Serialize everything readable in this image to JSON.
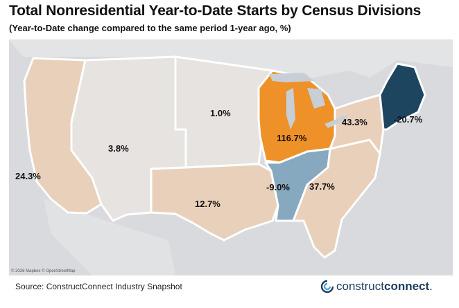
{
  "title": "Total Nonresidential Year-to-Date Starts by Census Divisions",
  "subtitle": "(Year-to-Date change compared to the same period 1-year ago, %)",
  "map": {
    "credit": "© 2026 Mapbox © OpenStreetMap",
    "legend": "none",
    "colors": {
      "background": "#d8dadd",
      "border_white": "#ffffff",
      "grey_division": "#e6e3e0",
      "tan_division": "#e8d0bb",
      "orange_division": "#ef9129",
      "blue_division": "#87a9c0",
      "navy_division": "#1e4560",
      "water": "#c7ced6"
    },
    "divisions": [
      {
        "name": "Pacific",
        "label": "24.3%",
        "value": 24.3,
        "color": "#e8d0bb"
      },
      {
        "name": "Mountain",
        "label": "3.8%",
        "value": 3.8,
        "color": "#e6e3e0"
      },
      {
        "name": "West North Central",
        "label": "1.0%",
        "value": 1.0,
        "color": "#e6e3e0"
      },
      {
        "name": "West South Central",
        "label": "12.7%",
        "value": 12.7,
        "color": "#e8d0bb"
      },
      {
        "name": "East North Central",
        "label": "116.7%",
        "value": 116.7,
        "color": "#ef9129"
      },
      {
        "name": "East South Central",
        "label": "-9.0%",
        "value": -9.0,
        "color": "#87a9c0"
      },
      {
        "name": "South Atlantic",
        "label": "37.7%",
        "value": 37.7,
        "color": "#e8d0bb"
      },
      {
        "name": "Middle Atlantic",
        "label": "43.3%",
        "value": 43.3,
        "color": "#e8d0bb"
      },
      {
        "name": "New England",
        "label": "-20.7%",
        "value": -20.7,
        "color": "#1e4560"
      }
    ]
  },
  "source": "Source: ConstructConnect Industry Snapshot",
  "brand": {
    "name_regular": "construct",
    "name_bold": "connect",
    "suffix": ".",
    "icon": "constructconnect-logo-icon",
    "color": "#1b3d5f"
  }
}
